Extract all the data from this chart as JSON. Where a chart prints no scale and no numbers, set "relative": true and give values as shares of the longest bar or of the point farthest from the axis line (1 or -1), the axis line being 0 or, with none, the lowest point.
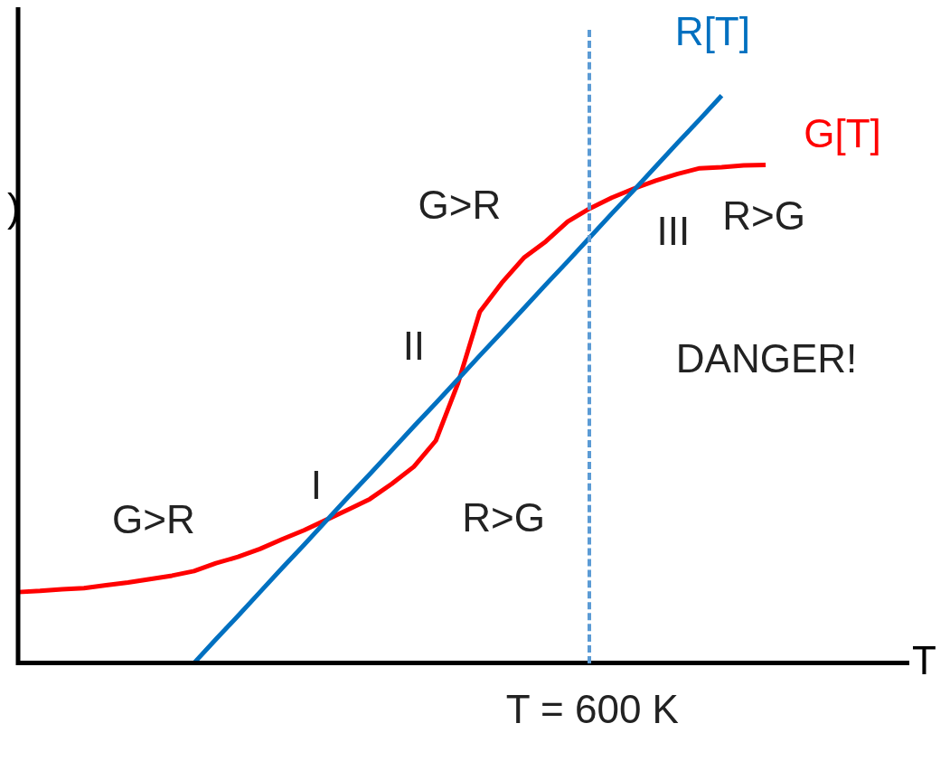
{
  "chart_data": {
    "type": "line",
    "relative": true,
    "xlabel": "T",
    "ylabel": ")",
    "marker": "none",
    "line_style": "solid",
    "categories": [
      null,
      null,
      null,
      null,
      null,
      null,
      null,
      null,
      null,
      null,
      null,
      null,
      null,
      null,
      null,
      null,
      null,
      null,
      null,
      null,
      null,
      null,
      null,
      null,
      null,
      null,
      null,
      null,
      null,
      null,
      null,
      null,
      null,
      null,
      null,
      null,
      null,
      null,
      null,
      null,
      null
    ],
    "series": [
      {
        "name": "R[T]",
        "color": "#0070c0",
        "values": [
          null,
          null,
          null,
          null,
          null,
          null,
          null,
          null,
          0,
          0.042,
          0.083,
          0.125,
          0.167,
          0.208,
          0.25,
          0.292,
          0.333,
          0.375,
          0.417,
          0.458,
          0.5,
          0.542,
          0.583,
          0.625,
          0.667,
          0.708,
          0.75,
          0.792,
          0.833,
          0.875,
          0.917,
          0.958,
          1,
          null,
          null,
          null,
          null,
          null,
          null,
          null,
          null
        ]
      },
      {
        "name": "G[T]",
        "color": "#ff0000",
        "values": [
          0.125,
          0.127,
          0.13,
          0.132,
          0.137,
          0.142,
          0.148,
          0.154,
          0.162,
          0.176,
          0.187,
          0.201,
          0.218,
          0.234,
          0.252,
          0.27,
          0.289,
          0.316,
          0.346,
          0.392,
          0.492,
          0.619,
          0.67,
          0.714,
          0.743,
          0.778,
          0.801,
          0.82,
          0.836,
          0.85,
          0.862,
          0.872,
          0.874,
          0.877,
          0.878,
          null,
          null,
          null,
          null,
          null,
          null
        ]
      }
    ],
    "annotations": [
      "G>R",
      "I",
      "R>G",
      "II",
      "G>R",
      "III",
      "R>G",
      "DANGER!",
      "T = 600 K"
    ]
  }
}
